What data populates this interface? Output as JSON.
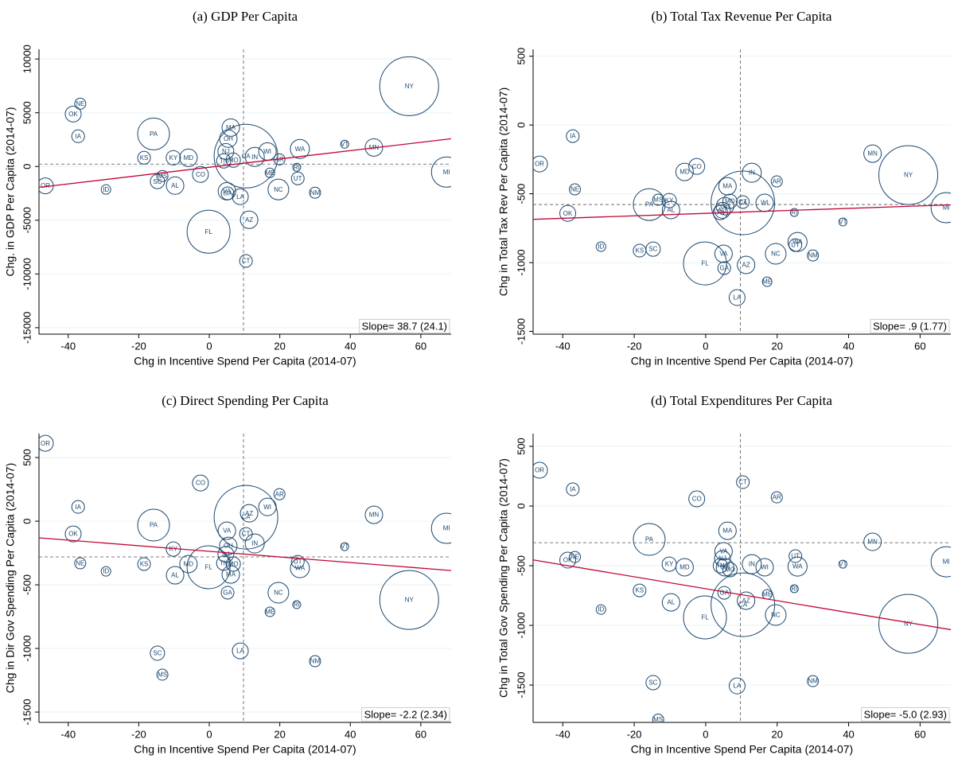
{
  "chart_data": [
    {
      "type": "bubble",
      "title": "(a) GDP Per Capita",
      "x_label": "Chg in Incentive Spend Per Capita (2014-07)",
      "y_label": "Chg. in GDP Per Capita (2014-07)",
      "annotation": "Slope= 38.7 (24.1)",
      "labels": [
        "OR",
        "NE",
        "OK",
        "IA",
        "ID",
        "KS",
        "PA",
        "MS",
        "SC",
        "KY",
        "AL",
        "MD",
        "CO",
        "FL",
        "MA",
        "OH",
        "NJ",
        "MO",
        "TN",
        "VA",
        "GA",
        "CA",
        "AZ",
        "LA",
        "CT",
        "ME",
        "IN",
        "WI",
        "AR",
        "NC",
        "UT",
        "RI",
        "WA",
        "NM",
        "VT",
        "MN",
        "NY",
        "MI"
      ],
      "x": [
        -46.5,
        -36.6,
        -38.6,
        -37.2,
        -29.3,
        -18.5,
        -15.8,
        -13.3,
        -14.7,
        -10.2,
        -9.7,
        -5.9,
        -2.5,
        -0.2,
        6.1,
        5.4,
        4.7,
        6.8,
        4.1,
        5.0,
        5.2,
        10.4,
        11.3,
        8.8,
        10.4,
        17.2,
        12.9,
        16.5,
        19.9,
        19.6,
        25.1,
        24.8,
        25.7,
        30.0,
        38.4,
        46.7,
        56.7,
        67.3
      ],
      "values": [
        -1800,
        5840,
        4880,
        2810,
        -2140,
        810,
        3030,
        -890,
        -1400,
        810,
        -1780,
        810,
        -740,
        -6070,
        3620,
        2590,
        1400,
        590,
        520,
        -2300,
        -2500,
        960,
        -4960,
        -2810,
        -8790,
        -590,
        890,
        1400,
        660,
        -2140,
        -1110,
        -70,
        1630,
        -2440,
        2070,
        1770,
        7470,
        -520
      ],
      "sizes": [
        100,
        49,
        100,
        64,
        36,
        64,
        400,
        49,
        81,
        81,
        121,
        121,
        100,
        729,
        121,
        121,
        100,
        81,
        81,
        121,
        64,
        1600,
        121,
        100,
        64,
        36,
        144,
        121,
        49,
        169,
        64,
        25,
        144,
        49,
        25,
        121,
        1369,
        361
      ],
      "color": "#1a476f",
      "fit_color": "#c10534",
      "fit": {
        "slope": 38.7,
        "intercept": -74
      },
      "vline": 9.7,
      "hline": 220,
      "xlim": [
        -48.3,
        68.6
      ],
      "xticks": [
        -40,
        -20,
        0,
        20,
        40,
        60
      ],
      "ylim": [
        -15600,
        10900
      ],
      "yticks": [
        -15000,
        -10000,
        -5000,
        0,
        5000,
        10000
      ],
      "grid": true
    },
    {
      "type": "bubble",
      "title": "(b) Total Tax Revenue Per Capita",
      "x_label": "Chg in Incentive Spend Per Capita (2014-07)",
      "y_label": "Chg in Total Tax Rev Per Capita (2014-07)",
      "annotation": "Slope= .9 (1.77)",
      "labels": [
        "OR",
        "NE",
        "OK",
        "IA",
        "ID",
        "KS",
        "PA",
        "MS",
        "SC",
        "KY",
        "AL",
        "MD",
        "CO",
        "FL",
        "MA",
        "OH",
        "NJ",
        "MO",
        "TN",
        "VA",
        "GA",
        "CA",
        "AZ",
        "LA",
        "CT",
        "ME",
        "IN",
        "WI",
        "AR",
        "NC",
        "UT",
        "RI",
        "WA",
        "NM",
        "VT",
        "MN",
        "NY",
        "MI"
      ],
      "x": [
        -46.5,
        -36.6,
        -38.6,
        -37.2,
        -29.3,
        -18.5,
        -15.8,
        -13.3,
        -14.7,
        -10.2,
        -9.7,
        -5.9,
        -2.5,
        -0.2,
        6.1,
        5.4,
        4.7,
        6.8,
        4.1,
        5.0,
        5.2,
        10.4,
        11.3,
        8.8,
        10.4,
        17.2,
        12.9,
        16.5,
        19.9,
        19.6,
        25.1,
        24.8,
        25.7,
        30.0,
        38.4,
        46.7,
        56.7,
        67.3
      ],
      "values": [
        -283,
        -468,
        -642,
        -81,
        -884,
        -913,
        -578,
        -543,
        -902,
        -549,
        -618,
        -341,
        -301,
        -1006,
        -445,
        -590,
        -620,
        -555,
        -636,
        -936,
        -1040,
        -566,
        -1017,
        -1254,
        -560,
        -1139,
        -347,
        -566,
        -410,
        -936,
        -873,
        -636,
        -850,
        -948,
        -705,
        -208,
        -364,
        -601
      ],
      "sizes": [
        100,
        49,
        100,
        64,
        36,
        64,
        400,
        49,
        81,
        81,
        121,
        121,
        100,
        729,
        121,
        121,
        100,
        81,
        81,
        121,
        64,
        1600,
        121,
        100,
        64,
        36,
        144,
        121,
        49,
        169,
        64,
        25,
        144,
        49,
        25,
        121,
        1369,
        361
      ],
      "color": "#1a476f",
      "fit_color": "#c10534",
      "fit": {
        "slope": 0.9,
        "intercept": -642
      },
      "vline": 9.7,
      "hline": -578,
      "xlim": [
        -48.3,
        68.6
      ],
      "xticks": [
        -40,
        -20,
        0,
        20,
        40,
        60
      ],
      "ylim": [
        -1520,
        550
      ],
      "yticks": [
        -1500,
        -1000,
        -500,
        0,
        500
      ],
      "grid": true
    },
    {
      "type": "bubble",
      "title": "(c) Direct Spending Per Capita",
      "x_label": "Chg in Incentive Spend Per Capita (2014-07)",
      "y_label": "Chg in Dir Gov Spending Per Capita (2014-07)",
      "annotation": "Slope= -2.2 (2.34)",
      "labels": [
        "OR",
        "NE",
        "OK",
        "IA",
        "ID",
        "KS",
        "PA",
        "MS",
        "SC",
        "KY",
        "AL",
        "MD",
        "CO",
        "FL",
        "MA",
        "OH",
        "NJ",
        "MO",
        "TN",
        "VA",
        "GA",
        "CA",
        "AZ",
        "LA",
        "CT",
        "ME",
        "IN",
        "WI",
        "AR",
        "NC",
        "UT",
        "RI",
        "WA",
        "NM",
        "VT",
        "MN",
        "NY",
        "MI"
      ],
      "x": [
        -46.5,
        -36.6,
        -38.6,
        -37.2,
        -29.3,
        -18.5,
        -15.8,
        -13.3,
        -14.7,
        -10.2,
        -9.7,
        -5.9,
        -2.5,
        -0.2,
        6.1,
        5.4,
        4.7,
        6.8,
        4.1,
        5.0,
        5.2,
        10.4,
        11.3,
        8.8,
        10.4,
        17.2,
        12.9,
        16.5,
        19.9,
        19.6,
        25.1,
        24.8,
        25.7,
        30.0,
        38.4,
        46.7,
        56.7,
        67.3
      ],
      "values": [
        612,
        -331,
        -100,
        112,
        -394,
        -337,
        -31,
        -1206,
        -1037,
        -219,
        -425,
        -337,
        300,
        -362,
        -419,
        -194,
        -260,
        -337,
        -330,
        -75,
        -562,
        31,
        62,
        -1019,
        -100,
        -712,
        -175,
        112,
        212,
        -562,
        -319,
        -656,
        -369,
        -1100,
        -200,
        50,
        -619,
        -56
      ],
      "sizes": [
        100,
        49,
        100,
        64,
        36,
        64,
        400,
        49,
        81,
        81,
        121,
        121,
        100,
        729,
        121,
        121,
        100,
        81,
        81,
        121,
        64,
        1600,
        121,
        100,
        64,
        36,
        144,
        121,
        49,
        169,
        64,
        25,
        144,
        49,
        25,
        121,
        1369,
        361
      ],
      "color": "#1a476f",
      "fit_color": "#c10534",
      "fit": {
        "slope": -2.2,
        "intercept": -237
      },
      "vline": 9.7,
      "hline": -281,
      "xlim": [
        -48.3,
        68.6
      ],
      "xticks": [
        -40,
        -20,
        0,
        20,
        40,
        60
      ],
      "ylim": [
        -1581,
        688
      ],
      "yticks": [
        -1500,
        -1000,
        -500,
        0,
        500
      ],
      "grid": true
    },
    {
      "type": "bubble",
      "title": "(d) Total Expenditures Per Capita",
      "x_label": "Chg in Incentive Spend Per Capita (2014-07)",
      "y_label": "Chg in Total Gov Spending Per Capita (2014-07)",
      "annotation": "Slope= -5.0 (2.93)",
      "labels": [
        "OR",
        "NE",
        "OK",
        "IA",
        "ID",
        "KS",
        "PA",
        "MS",
        "SC",
        "KY",
        "AL",
        "MD",
        "CO",
        "FL",
        "MA",
        "OH",
        "NJ",
        "MO",
        "TN",
        "VA",
        "GA",
        "CA",
        "AZ",
        "LA",
        "CT",
        "ME",
        "IN",
        "WI",
        "AR",
        "NC",
        "UT",
        "RI",
        "WA",
        "NM",
        "VT",
        "MN",
        "NY",
        "MI"
      ],
      "x": [
        -46.5,
        -36.6,
        -38.6,
        -37.2,
        -29.3,
        -18.5,
        -15.8,
        -13.3,
        -14.7,
        -10.2,
        -9.7,
        -5.9,
        -2.5,
        -0.2,
        6.1,
        5.4,
        4.7,
        6.8,
        4.1,
        5.0,
        5.2,
        10.4,
        11.3,
        8.8,
        10.4,
        17.2,
        12.9,
        16.5,
        19.9,
        19.6,
        25.1,
        24.8,
        25.7,
        30.0,
        38.4,
        46.7,
        56.7,
        67.3
      ],
      "values": [
        300,
        -427,
        -453,
        140,
        -867,
        -707,
        -280,
        -1790,
        -1480,
        -487,
        -807,
        -513,
        60,
        -933,
        -207,
        -513,
        -440,
        -533,
        -500,
        -380,
        -727,
        -827,
        -793,
        -1507,
        200,
        -740,
        -487,
        -513,
        73,
        -913,
        -420,
        -693,
        -507,
        -1467,
        -487,
        -300,
        -987,
        -467
      ],
      "sizes": [
        100,
        49,
        100,
        64,
        36,
        64,
        400,
        49,
        81,
        81,
        121,
        121,
        100,
        729,
        121,
        121,
        100,
        81,
        81,
        121,
        64,
        1600,
        121,
        100,
        64,
        36,
        144,
        121,
        49,
        169,
        64,
        25,
        144,
        49,
        25,
        121,
        1369,
        361
      ],
      "color": "#1a476f",
      "fit_color": "#c10534",
      "fit": {
        "slope": -5.0,
        "intercept": -693
      },
      "vline": 9.7,
      "hline": -307,
      "xlim": [
        -48.3,
        68.6
      ],
      "xticks": [
        -40,
        -20,
        0,
        20,
        40,
        60
      ],
      "ylim": [
        -1813,
        607
      ],
      "yticks": [
        -1500,
        -1000,
        -500,
        0,
        500
      ],
      "grid": true
    }
  ]
}
